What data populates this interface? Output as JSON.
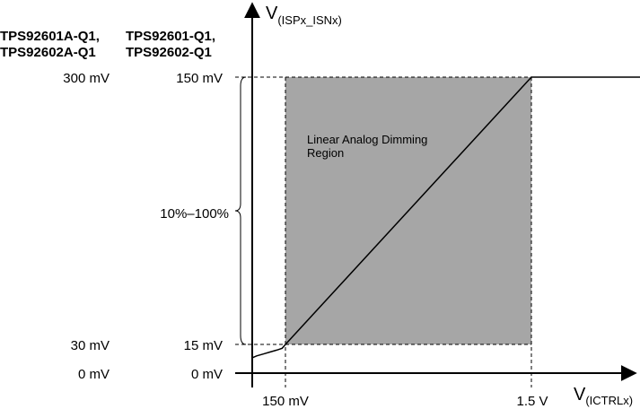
{
  "chart_data": {
    "type": "line",
    "title": "",
    "y_axis_label": {
      "main": "V",
      "sub": "(ISPx_ISNx)"
    },
    "x_axis_label": {
      "main": "V",
      "sub": "(ICTRLx)"
    },
    "device_groups": [
      {
        "line1": "TPS92601A-Q1,",
        "line2": "TPS92602A-Q1"
      },
      {
        "line1": "TPS92601-Q1,",
        "line2": "TPS92602-Q1"
      }
    ],
    "y_tick_labels_group_a": [
      "300 mV",
      "30 mV",
      "0 mV"
    ],
    "y_tick_labels_group_b": [
      "150 mV",
      "15 mV",
      "0 mV"
    ],
    "x_tick_labels": [
      "150 mV",
      "1.5 V"
    ],
    "x_ticks_mV": [
      150,
      1500
    ],
    "y_ticks_mV": [
      15,
      150
    ],
    "brace_label": "10%–100%",
    "region_label": {
      "line1": "Linear Analog Dimming",
      "line2": "Region"
    },
    "region": {
      "x_mV": [
        150,
        1500
      ],
      "y_mV": [
        15,
        150
      ]
    },
    "xlim_mV": [
      0,
      2150
    ],
    "ylim_mV": [
      0,
      150
    ],
    "series": [
      {
        "x_mV": [
          0,
          20,
          50,
          80,
          110,
          135,
          150,
          1500,
          2100
        ],
        "y_mV": [
          8,
          9,
          10,
          11,
          12,
          13,
          15,
          150,
          150
        ]
      }
    ],
    "colors": {
      "region_fill": "#a6a6a6",
      "line": "#000000"
    }
  }
}
